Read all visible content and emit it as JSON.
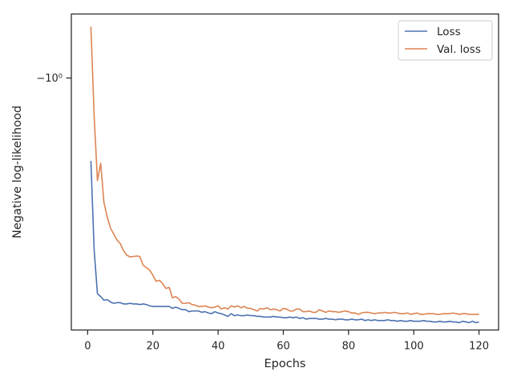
{
  "chart_data": {
    "type": "line",
    "title": "",
    "xlabel": "Epochs",
    "ylabel": "Negative log-likelihood",
    "xlim": [
      -5,
      126
    ],
    "x_ticks": [
      0,
      20,
      40,
      60,
      80,
      100,
      120
    ],
    "y_tick_label": "−10⁰",
    "y_scale": "symlog",
    "grid": false,
    "legend": "top-right",
    "series": [
      {
        "name": "Loss",
        "color": "#4c72b0",
        "x": [
          1,
          2,
          3,
          4,
          5,
          6,
          7,
          8,
          9,
          10,
          11,
          12,
          13,
          14,
          15,
          16,
          17,
          18,
          19,
          20,
          21,
          22,
          23,
          24,
          25,
          26,
          27,
          28,
          29,
          30,
          31,
          32,
          33,
          34,
          35,
          36,
          37,
          38,
          39,
          40,
          41,
          42,
          43,
          44,
          45,
          46,
          47,
          48,
          49,
          50,
          51,
          52,
          53,
          54,
          55,
          56,
          57,
          58,
          59,
          60,
          61,
          62,
          63,
          64,
          65,
          66,
          67,
          68,
          69,
          70,
          71,
          72,
          73,
          74,
          75,
          76,
          77,
          78,
          79,
          80,
          81,
          82,
          83,
          84,
          85,
          86,
          87,
          88,
          89,
          90,
          91,
          92,
          93,
          94,
          95,
          96,
          97,
          98,
          99,
          100,
          101,
          102,
          103,
          104,
          105,
          106,
          107,
          108,
          109,
          110,
          111,
          112,
          113,
          114,
          115,
          116,
          117,
          118,
          119,
          120
        ],
        "y": [
          -0.62,
          -0.33,
          -0.243,
          -0.238,
          -0.232,
          -0.233,
          -0.229,
          -0.227,
          -0.228,
          -0.228,
          -0.226,
          -0.226,
          -0.227,
          -0.226,
          -0.226,
          -0.225,
          -0.226,
          -0.225,
          -0.223,
          -0.222,
          -0.222,
          -0.222,
          -0.222,
          -0.222,
          -0.222,
          -0.219,
          -0.221,
          -0.219,
          -0.217,
          -0.217,
          -0.214,
          -0.215,
          -0.215,
          -0.215,
          -0.213,
          -0.214,
          -0.212,
          -0.211,
          -0.214,
          -0.212,
          -0.211,
          -0.209,
          -0.207,
          -0.211,
          -0.208,
          -0.209,
          -0.208,
          -0.208,
          -0.209,
          -0.208,
          -0.208,
          -0.207,
          -0.207,
          -0.206,
          -0.206,
          -0.206,
          -0.207,
          -0.206,
          -0.206,
          -0.205,
          -0.205,
          -0.206,
          -0.205,
          -0.206,
          -0.204,
          -0.205,
          -0.203,
          -0.204,
          -0.204,
          -0.204,
          -0.203,
          -0.203,
          -0.204,
          -0.203,
          -0.203,
          -0.202,
          -0.203,
          -0.203,
          -0.202,
          -0.202,
          -0.203,
          -0.202,
          -0.202,
          -0.203,
          -0.201,
          -0.202,
          -0.201,
          -0.202,
          -0.201,
          -0.201,
          -0.201,
          -0.202,
          -0.201,
          -0.201,
          -0.2,
          -0.201,
          -0.2,
          -0.2,
          -0.201,
          -0.2,
          -0.2,
          -0.2,
          -0.201,
          -0.2,
          -0.2,
          -0.199,
          -0.199,
          -0.2,
          -0.199,
          -0.199,
          -0.2,
          -0.199,
          -0.199,
          -0.198,
          -0.2,
          -0.199,
          -0.198,
          -0.2,
          -0.198,
          -0.199
        ]
      },
      {
        "name": "Val. loss",
        "color": "#dd8452",
        "x": [
          1,
          2,
          3,
          4,
          5,
          6,
          7,
          8,
          9,
          10,
          11,
          12,
          13,
          14,
          15,
          16,
          17,
          18,
          19,
          20,
          21,
          22,
          23,
          24,
          25,
          26,
          27,
          28,
          29,
          30,
          31,
          32,
          33,
          34,
          35,
          36,
          37,
          38,
          39,
          40,
          41,
          42,
          43,
          44,
          45,
          46,
          47,
          48,
          49,
          50,
          51,
          52,
          53,
          54,
          55,
          56,
          57,
          58,
          59,
          60,
          61,
          62,
          63,
          64,
          65,
          66,
          67,
          68,
          69,
          70,
          71,
          72,
          73,
          74,
          75,
          76,
          77,
          78,
          79,
          80,
          81,
          82,
          83,
          84,
          85,
          86,
          87,
          88,
          89,
          90,
          91,
          92,
          93,
          94,
          95,
          96,
          97,
          98,
          99,
          100,
          101,
          102,
          103,
          104,
          105,
          106,
          107,
          108,
          109,
          110,
          111,
          112,
          113,
          114,
          115,
          116,
          117,
          118,
          119,
          120
        ],
        "y": [
          -1.6,
          -0.85,
          -0.54,
          -0.61,
          -0.462,
          -0.418,
          -0.386,
          -0.37,
          -0.355,
          -0.346,
          -0.329,
          -0.319,
          -0.315,
          -0.316,
          -0.317,
          -0.316,
          -0.297,
          -0.292,
          -0.287,
          -0.277,
          -0.265,
          -0.267,
          -0.261,
          -0.252,
          -0.254,
          -0.236,
          -0.238,
          -0.234,
          -0.227,
          -0.227,
          -0.228,
          -0.225,
          -0.224,
          -0.222,
          -0.222,
          -0.223,
          -0.221,
          -0.22,
          -0.221,
          -0.223,
          -0.218,
          -0.22,
          -0.218,
          -0.223,
          -0.221,
          -0.223,
          -0.22,
          -0.222,
          -0.219,
          -0.219,
          -0.217,
          -0.215,
          -0.219,
          -0.218,
          -0.22,
          -0.217,
          -0.218,
          -0.217,
          -0.215,
          -0.219,
          -0.218,
          -0.215,
          -0.215,
          -0.218,
          -0.218,
          -0.214,
          -0.214,
          -0.215,
          -0.213,
          -0.213,
          -0.217,
          -0.215,
          -0.213,
          -0.215,
          -0.214,
          -0.214,
          -0.213,
          -0.214,
          -0.215,
          -0.214,
          -0.212,
          -0.212,
          -0.21,
          -0.212,
          -0.213,
          -0.213,
          -0.212,
          -0.211,
          -0.212,
          -0.212,
          -0.213,
          -0.212,
          -0.212,
          -0.213,
          -0.212,
          -0.211,
          -0.211,
          -0.212,
          -0.21,
          -0.211,
          -0.212,
          -0.21,
          -0.21,
          -0.211,
          -0.211,
          -0.211,
          -0.21,
          -0.21,
          -0.211,
          -0.211,
          -0.211,
          -0.212,
          -0.211,
          -0.21,
          -0.211,
          -0.211,
          -0.21,
          -0.21,
          -0.21,
          -0.21
        ]
      }
    ]
  }
}
